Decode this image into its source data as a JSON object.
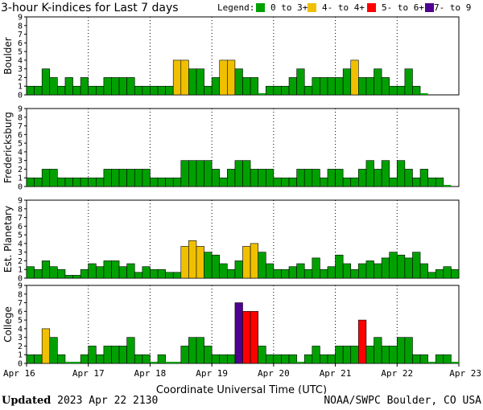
{
  "title": "3-hour K-indices for Last 7 days",
  "legend": {
    "label": "Legend:",
    "items": [
      {
        "label": "0 to 3+",
        "color": "#00a000"
      },
      {
        "label": "4- to 4+",
        "color": "#f0c000"
      },
      {
        "label": "5- to 6+",
        "color": "#ff0000"
      },
      {
        "label": "7- to 9",
        "color": "#500090"
      }
    ]
  },
  "footer": {
    "updated_label": "Updated",
    "updated_value": "2023 Apr 22 2130",
    "credit": "NOAA/SWPC Boulder, CO USA"
  },
  "chart_data": {
    "type": "bar",
    "xlabel": "Coordinate Universal Time (UTC)",
    "x_ticks": [
      "Apr 16",
      "Apr 17",
      "Apr 18",
      "Apr 19",
      "Apr 20",
      "Apr 21",
      "Apr 22",
      "Apr 23"
    ],
    "y_ticks": [
      "0",
      "1",
      "2",
      "3",
      "4",
      "5",
      "6",
      "7",
      "8",
      "9"
    ],
    "ylim": [
      0,
      9
    ],
    "intervals_per_day": 8,
    "grid": "dotted",
    "series": [
      {
        "name": "Boulder",
        "values": [
          1,
          1,
          3,
          2,
          1,
          2,
          1,
          2,
          1,
          1,
          2,
          2,
          2,
          2,
          1,
          1,
          1,
          1,
          1,
          4,
          4,
          3,
          3,
          1,
          2,
          4,
          4,
          3,
          2,
          2,
          0,
          1,
          1,
          1,
          2,
          3,
          1,
          2,
          2,
          2,
          2,
          3,
          4,
          2,
          2,
          3,
          2,
          1,
          1,
          3,
          1,
          0
        ]
      },
      {
        "name": "Fredericksburg",
        "values": [
          1,
          1,
          2,
          2,
          1,
          1,
          1,
          1,
          1,
          1,
          2,
          2,
          2,
          2,
          2,
          2,
          1,
          1,
          1,
          1,
          3,
          3,
          3,
          3,
          2,
          1,
          2,
          3,
          3,
          2,
          2,
          2,
          1,
          1,
          1,
          2,
          2,
          2,
          1,
          2,
          2,
          1,
          1,
          2,
          3,
          2,
          3,
          1,
          3,
          2,
          1,
          2,
          1,
          1,
          0
        ]
      },
      {
        "name": "Est. Planetary",
        "values": [
          1.33,
          1,
          2,
          1.33,
          1,
          0.33,
          0.33,
          1,
          1.67,
          1.33,
          2,
          2,
          1.33,
          1.67,
          0.67,
          1.33,
          1,
          1,
          0.67,
          0.67,
          3.67,
          4.33,
          3.67,
          3,
          2.67,
          1.67,
          1,
          2,
          3.67,
          4,
          3,
          1.67,
          1,
          1,
          1.33,
          1.67,
          1,
          2.33,
          1,
          1.33,
          2.67,
          1.67,
          1,
          1.67,
          2,
          1.67,
          2.33,
          3,
          2.67,
          2.33,
          3,
          1.67,
          0.67,
          1,
          1.33,
          1
        ]
      },
      {
        "name": "College",
        "values": [
          1,
          1,
          4,
          3,
          1,
          0,
          0,
          1,
          2,
          1,
          2,
          2,
          2,
          3,
          1,
          1,
          0,
          1,
          0,
          0,
          2,
          3,
          3,
          2,
          1,
          1,
          1,
          7,
          6,
          6,
          2,
          1,
          1,
          1,
          1,
          0,
          1,
          2,
          1,
          1,
          2,
          2,
          2,
          5,
          2,
          3,
          2,
          2,
          3,
          3,
          1,
          1,
          0,
          1,
          1,
          0
        ]
      }
    ]
  }
}
